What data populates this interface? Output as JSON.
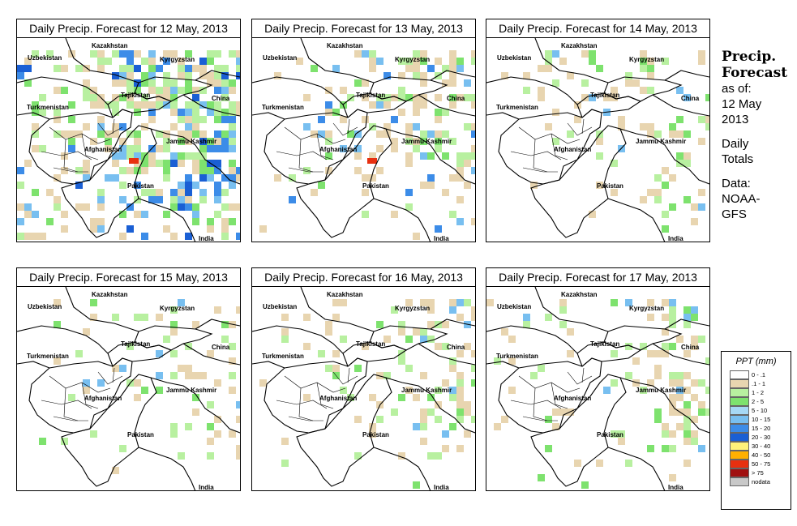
{
  "panels": [
    {
      "title": "Daily Precip. Forecast for  12 May, 2013",
      "intensity": "high"
    },
    {
      "title": "Daily Precip. Forecast for  13 May, 2013",
      "intensity": "medium"
    },
    {
      "title": "Daily Precip. Forecast for  14 May, 2013",
      "intensity": "low"
    },
    {
      "title": "Daily Precip. Forecast for  15 May, 2013",
      "intensity": "low"
    },
    {
      "title": "Daily Precip. Forecast for  16 May, 2013",
      "intensity": "low-medium"
    },
    {
      "title": "Daily Precip. Forecast for  17 May, 2013",
      "intensity": "low-medium"
    }
  ],
  "map_labels": {
    "kazakhstan": "Kazakhstan",
    "uzbekistan": "Uzbekistan",
    "kyrgyzstan": "Kyrgyzstan",
    "tajikistan": "Tajikistan",
    "turkmenistan": "Turkmenistan",
    "china": "China",
    "afghanistan": "Afghanistan",
    "jammu_kashmir": "Jammu Kashmir",
    "pakistan": "Pakistan",
    "india": "India"
  },
  "sidebar": {
    "title_line1": "Precip.",
    "title_line2": "Forecast",
    "asof": "as of:",
    "date_line1": "12 May",
    "date_line2": "2013",
    "daily_line1": "Daily",
    "daily_line2": "Totals",
    "data_line1": "Data:",
    "data_line2": "NOAA-",
    "data_line3": "GFS"
  },
  "legend": {
    "title": "PPT (mm)",
    "items": [
      {
        "label": "0 - .1",
        "color": "#ffffff"
      },
      {
        "label": ".1 - 1",
        "color": "#e8d5b0"
      },
      {
        "label": "1 - 2",
        "color": "#b8f0a0"
      },
      {
        "label": "2 - 5",
        "color": "#7ee26e"
      },
      {
        "label": "5 - 10",
        "color": "#a6d8f5"
      },
      {
        "label": "10 - 15",
        "color": "#78bff0"
      },
      {
        "label": "15 - 20",
        "color": "#3c8ce8"
      },
      {
        "label": "20 - 30",
        "color": "#1a5fd4"
      },
      {
        "label": "30 - 40",
        "color": "#fff27a"
      },
      {
        "label": "40 - 50",
        "color": "#ffb000"
      },
      {
        "label": "50 - 75",
        "color": "#e83010"
      },
      {
        "label": "> 75",
        "color": "#a01010"
      },
      {
        "label": "nodata",
        "color": "#c8c8c8"
      }
    ]
  }
}
